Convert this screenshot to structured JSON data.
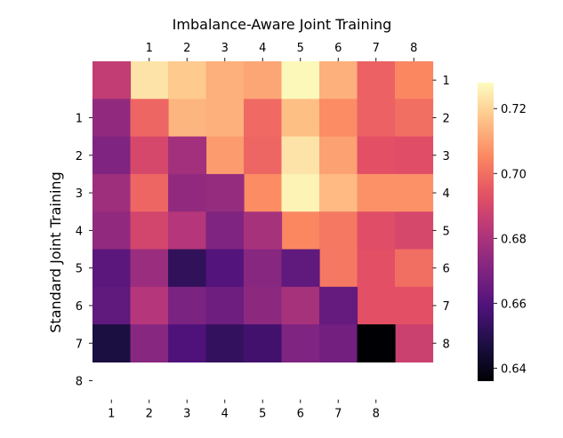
{
  "chart_data": {
    "type": "heatmap",
    "title": "Imbalance-Aware Joint Training",
    "ylabel": "Standard Joint Training",
    "top_tick_labels": [
      "1",
      "2",
      "3",
      "4",
      "5",
      "6",
      "7",
      "8"
    ],
    "right_tick_labels": [
      "1",
      "2",
      "3",
      "4",
      "5",
      "6",
      "7",
      "8"
    ],
    "left_tick_labels": [
      "1",
      "2",
      "3",
      "4",
      "5",
      "6",
      "7",
      "8"
    ],
    "bottom_tick_labels": [
      "1",
      "2",
      "3",
      "4",
      "5",
      "6",
      "7",
      "8"
    ],
    "upper_triangle": [
      [
        null,
        0.723,
        0.718,
        0.713,
        0.711,
        0.727,
        0.713,
        0.697,
        0.705
      ],
      [
        null,
        null,
        0.714,
        0.713,
        0.699,
        0.716,
        0.706,
        0.697,
        0.7
      ],
      [
        null,
        null,
        null,
        0.709,
        0.698,
        0.723,
        0.71,
        0.693,
        0.692
      ],
      [
        null,
        null,
        null,
        null,
        0.706,
        0.726,
        0.715,
        0.707,
        0.707
      ],
      [
        null,
        null,
        null,
        null,
        null,
        0.705,
        0.702,
        0.692,
        0.69
      ],
      [
        null,
        null,
        null,
        null,
        null,
        null,
        0.702,
        0.693,
        0.7
      ],
      [
        null,
        null,
        null,
        null,
        null,
        null,
        null,
        0.693,
        0.693
      ],
      [
        null,
        null,
        null,
        null,
        null,
        null,
        null,
        null,
        0.687
      ]
    ],
    "lower_triangle": [
      [
        0.685,
        null,
        null,
        null,
        null,
        null,
        null,
        null,
        null
      ],
      [
        0.674,
        0.698,
        null,
        null,
        null,
        null,
        null,
        null,
        null
      ],
      [
        0.67,
        0.69,
        0.678,
        null,
        null,
        null,
        null,
        null,
        null
      ],
      [
        0.677,
        0.698,
        0.674,
        0.675,
        null,
        null,
        null,
        null,
        null
      ],
      [
        0.674,
        0.689,
        0.682,
        0.67,
        0.679,
        null,
        null,
        null,
        null
      ],
      [
        0.662,
        0.676,
        0.652,
        0.66,
        0.672,
        0.663,
        null,
        null,
        null
      ],
      [
        0.663,
        0.682,
        0.669,
        0.666,
        0.673,
        0.679,
        0.664,
        null,
        null
      ],
      [
        0.647,
        0.672,
        0.659,
        0.653,
        0.656,
        0.67,
        0.667,
        0.636,
        null
      ]
    ],
    "colorbar": {
      "colormap": "magma",
      "range": [
        0.636,
        0.728
      ],
      "ticks": [
        0.64,
        0.66,
        0.68,
        0.7,
        0.72
      ]
    }
  }
}
